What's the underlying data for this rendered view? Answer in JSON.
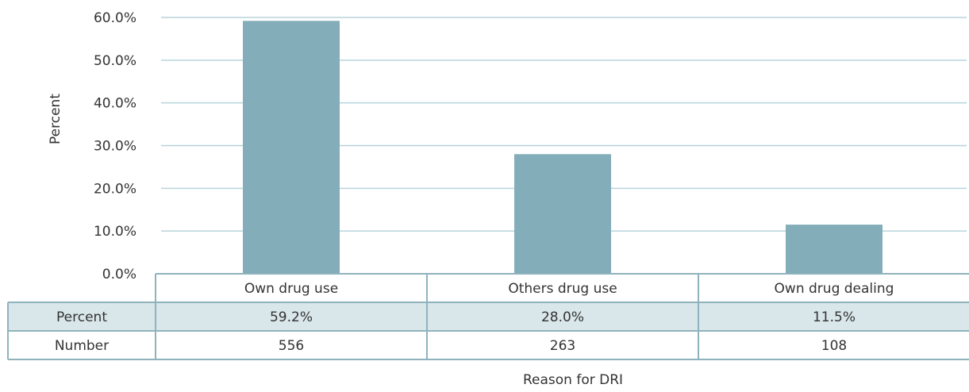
{
  "chart_data": {
    "type": "bar",
    "categories": [
      "Own drug use",
      "Others drug use",
      "Own drug dealing"
    ],
    "series": [
      {
        "values": [
          59.2,
          28.0,
          11.5
        ]
      }
    ],
    "ylim": [
      0,
      60
    ],
    "yticks": [
      "0.0%",
      "10.0%",
      "20.0%",
      "30.0%",
      "40.0%",
      "50.0%",
      "60.0%"
    ],
    "ylabel": "Percent",
    "xlabel": "Reason for DRI",
    "grid": true,
    "colors": {
      "bar": "#82adb9",
      "grid": "#b8d4dc",
      "table_border": "#8fb3bd",
      "row_fill": "#d9e6ea"
    },
    "data_table": {
      "rows": [
        {
          "label": "Percent",
          "values": [
            "59.2%",
            "28.0%",
            "11.5%"
          ]
        },
        {
          "label": "Number",
          "values": [
            "556",
            "263",
            "108"
          ]
        }
      ]
    }
  }
}
